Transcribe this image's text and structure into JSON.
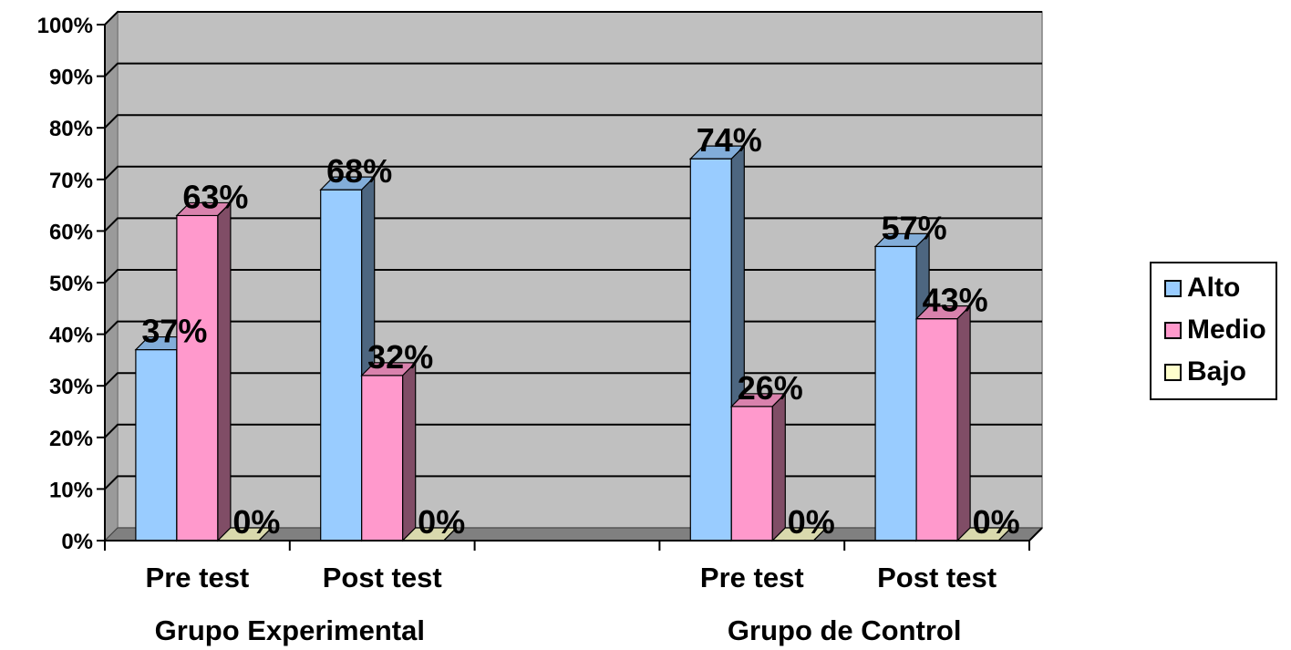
{
  "chart_data": {
    "type": "bar",
    "title": "",
    "xlabel": "",
    "ylabel": "",
    "ylim": [
      0,
      100
    ],
    "y_ticks": [
      "0%",
      "10%",
      "20%",
      "30%",
      "40%",
      "50%",
      "60%",
      "70%",
      "80%",
      "90%",
      "100%"
    ],
    "categories": [
      "Pre test",
      "Post test",
      "",
      "Pre test",
      "Post test"
    ],
    "groups": [
      {
        "label": "Grupo Experimental"
      },
      {
        "label": "Grupo de Control"
      }
    ],
    "series": [
      {
        "name": "Alto",
        "color": "#99CCFF",
        "values": [
          37,
          68,
          null,
          74,
          57
        ],
        "labels": [
          "37%",
          "68%",
          "",
          "74%",
          "57%"
        ]
      },
      {
        "name": "Medio",
        "color": "#FF99CC",
        "values": [
          63,
          32,
          null,
          26,
          43
        ],
        "labels": [
          "63%",
          "32%",
          "",
          "26%",
          "43%"
        ]
      },
      {
        "name": "Bajo",
        "color": "#FFFFCC",
        "values": [
          0,
          0,
          null,
          0,
          0
        ],
        "labels": [
          "0%",
          "0%",
          "",
          "0%",
          "0%"
        ]
      }
    ],
    "plot_background": "#C0C0C0",
    "grid": true,
    "legend_position": "right",
    "style": "3d-clustered-column"
  }
}
